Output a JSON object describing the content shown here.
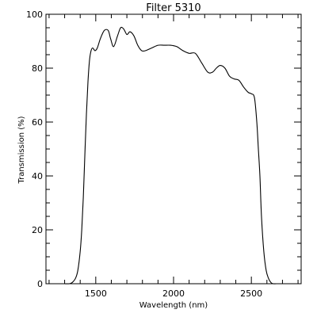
{
  "chart_data": {
    "type": "line",
    "title": "Filter 5310",
    "xlabel": "Wavelength (nm)",
    "ylabel": "Transmission (%)",
    "xlim": [
      1180,
      2820
    ],
    "ylim": [
      0,
      100
    ],
    "x_ticks": [
      1500,
      2000,
      2500
    ],
    "y_ticks": [
      0,
      20,
      40,
      60,
      80,
      100
    ],
    "x_ticks_minor_step": 100,
    "y_ticks_minor_step": 5,
    "x_tick_labels": [
      "1500",
      "2000",
      "2500"
    ],
    "y_tick_labels": [
      "0",
      "20",
      "40",
      "60",
      "80",
      "100"
    ],
    "grid": false,
    "line_color": "#000000",
    "series": [
      {
        "x": [
          1300,
          1330,
          1350,
          1370,
          1385,
          1400,
          1410,
          1420,
          1430,
          1440,
          1450,
          1460,
          1470,
          1480,
          1495,
          1510,
          1530,
          1555,
          1580,
          1595,
          1615,
          1640,
          1660,
          1680,
          1700,
          1720,
          1745,
          1770,
          1795,
          1820,
          1860,
          1900,
          1940,
          1980,
          2020,
          2060,
          2100,
          2140,
          2180,
          2220,
          2250,
          2275,
          2300,
          2330,
          2360,
          2390,
          2420,
          2450,
          2480,
          2500,
          2520,
          2535,
          2545,
          2555,
          2565,
          2580,
          2595,
          2610,
          2625,
          2640,
          2660,
          2680,
          2700,
          2760
        ],
        "y": [
          0,
          0,
          0.5,
          2,
          5,
          12,
          20,
          32,
          48,
          63,
          75,
          83,
          86.5,
          87.5,
          86.5,
          87.5,
          91,
          94,
          94,
          91,
          88,
          92,
          95,
          94.5,
          92.5,
          93.5,
          92,
          88.5,
          86.5,
          86.5,
          87.5,
          88.5,
          88.5,
          88.5,
          88,
          86.5,
          85.5,
          85.5,
          82,
          78.5,
          78.5,
          80,
          81,
          80,
          77,
          76,
          75.5,
          73,
          71,
          70.5,
          69,
          60,
          50,
          40,
          25,
          12,
          5,
          2,
          0.5,
          0,
          0,
          0,
          0,
          0
        ]
      }
    ]
  }
}
